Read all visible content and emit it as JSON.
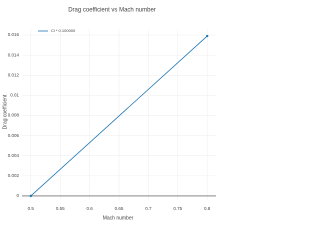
{
  "chart_data": {
    "type": "line",
    "title": "Drag coefficient vs Mach number",
    "x_label": "Mach number",
    "y_label": "Drag coefficient",
    "x": [
      0.5,
      0.8
    ],
    "series": [
      {
        "name": "Cl * 0.100000",
        "color": "#1f77b4",
        "values": [
          0,
          0.0159
        ]
      }
    ],
    "xlim": [
      0.485,
      0.815
    ],
    "xticks": [
      0.5,
      0.55,
      0.6,
      0.65,
      0.7,
      0.75,
      0.8
    ],
    "ylim": [
      -0.0004,
      0.0166
    ],
    "yticks": [
      0,
      0.002,
      0.004,
      0.006,
      0.008,
      0.01,
      0.012,
      0.014,
      0.016
    ],
    "grid": true,
    "legend": "top-left"
  }
}
